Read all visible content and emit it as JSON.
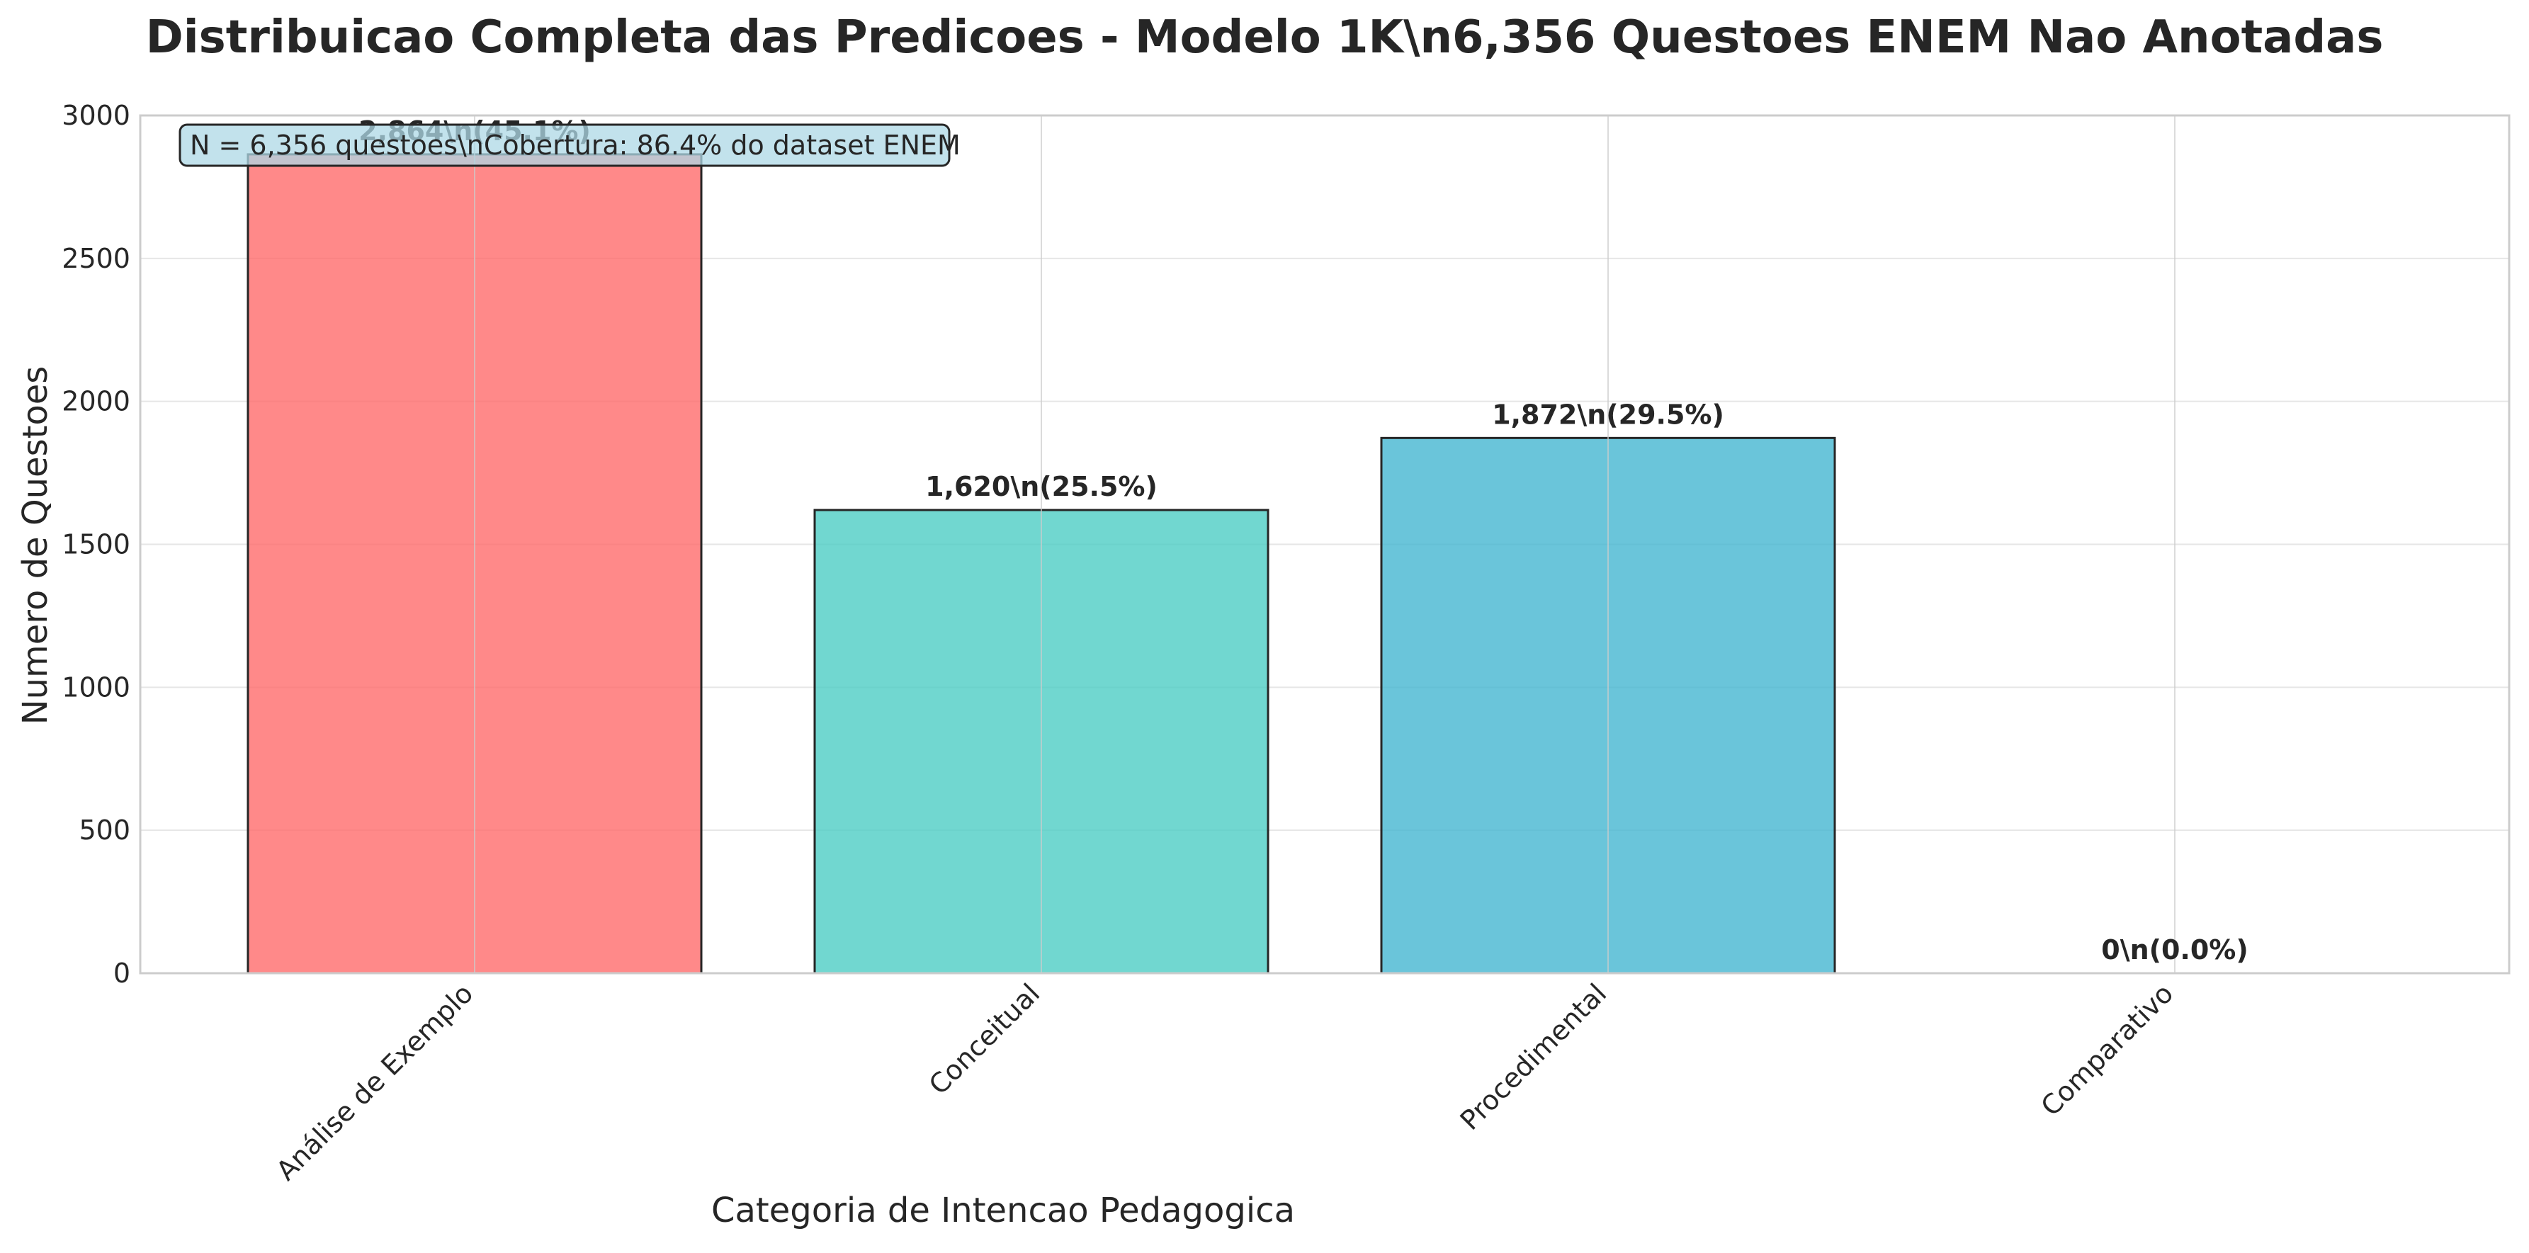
{
  "chart_data": {
    "type": "bar",
    "title": "Distribuicao Completa das Predicoes - Modelo 1K\\n6,356 Questoes ENEM Nao Anotadas",
    "xlabel": "Categoria de Intencao Pedagogica",
    "ylabel": "Numero de Questoes",
    "categories": [
      "Análise de Exemplo",
      "Conceitual",
      "Procedimental",
      "Comparativo"
    ],
    "values": [
      2864,
      1620,
      1872,
      0
    ],
    "data_labels": [
      "2,864\\n(45.1%)",
      "1,620\\n(25.5%)",
      "1,872\\n(29.5%)",
      "0\\n(0.0%)"
    ],
    "colors": [
      "#FF6B6B",
      "#4ECDC4",
      "#45B7D1",
      "#96CEB4"
    ],
    "ylim": [
      0,
      3000
    ],
    "yticks": [
      "0",
      "500",
      "1000",
      "1500",
      "2000",
      "2500",
      "3000"
    ],
    "grid": true,
    "annotation": "N = 6,356 questoes\\nCobertura: 86.4% do dataset ENEM",
    "annotation_bg": "#ADD8E6"
  }
}
